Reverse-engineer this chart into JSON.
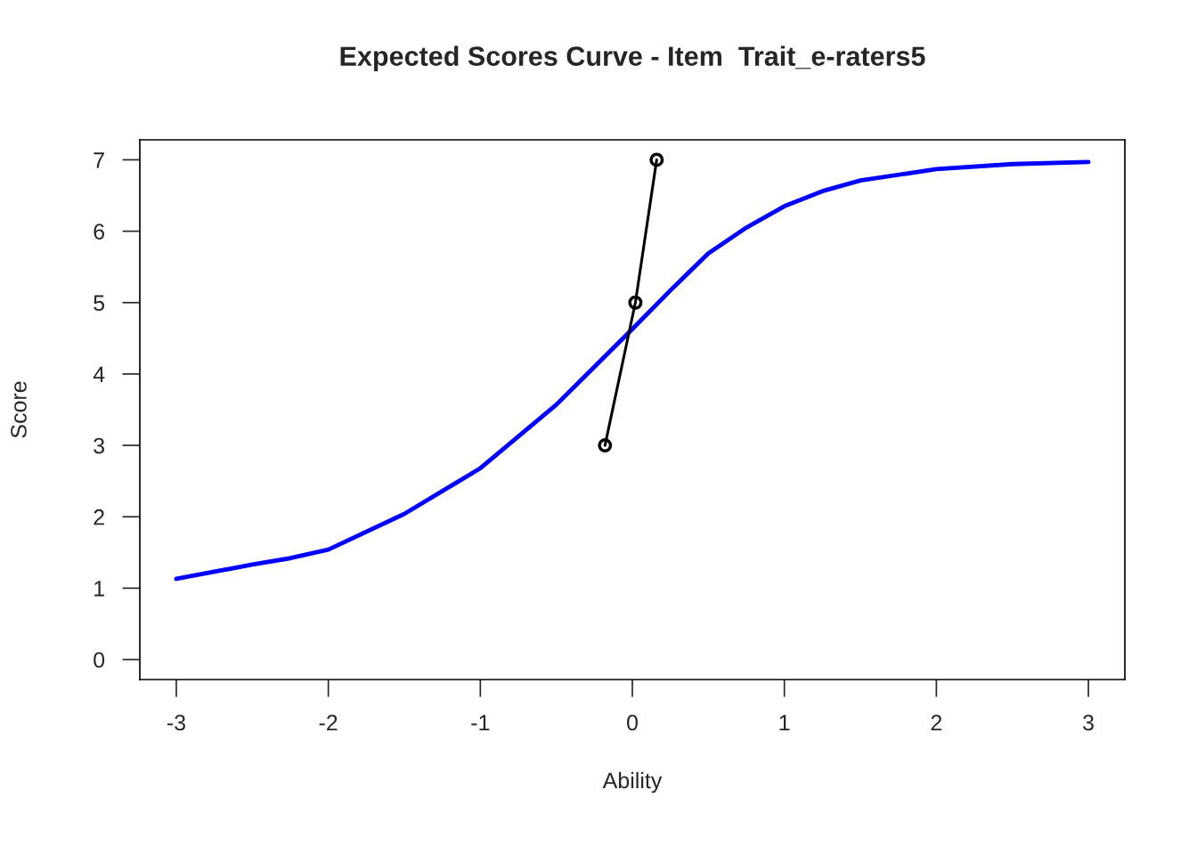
{
  "chart_data": {
    "type": "line",
    "title": "Expected Scores Curve - Item  Trait_e-raters5",
    "xlabel": "Ability",
    "ylabel": "Score",
    "xlim": [
      -3.24,
      3.24
    ],
    "ylim": [
      -0.28,
      7.28
    ],
    "xticks": [
      -3,
      -2,
      -1,
      0,
      1,
      2,
      3
    ],
    "yticks": [
      0,
      1,
      2,
      3,
      4,
      5,
      6,
      7
    ],
    "grid": false,
    "legend": false,
    "series": [
      {
        "color": "#0000ff",
        "marker": "none",
        "x": [
          -3,
          -2.5,
          -2.25,
          -2,
          -1.5,
          -1,
          -0.5,
          -0.25,
          0,
          0.25,
          0.5,
          0.75,
          1,
          1.25,
          1.5,
          2,
          2.5,
          3
        ],
        "values": [
          1.13,
          1.33,
          1.42,
          1.54,
          2.04,
          2.68,
          3.57,
          4.1,
          4.63,
          5.17,
          5.69,
          6.05,
          6.35,
          6.56,
          6.71,
          6.87,
          6.94,
          6.97
        ]
      },
      {
        "color": "#000000",
        "marker": "circle",
        "x": [
          -0.18,
          0.02,
          0.16
        ],
        "values": [
          3,
          5,
          7
        ]
      }
    ]
  }
}
